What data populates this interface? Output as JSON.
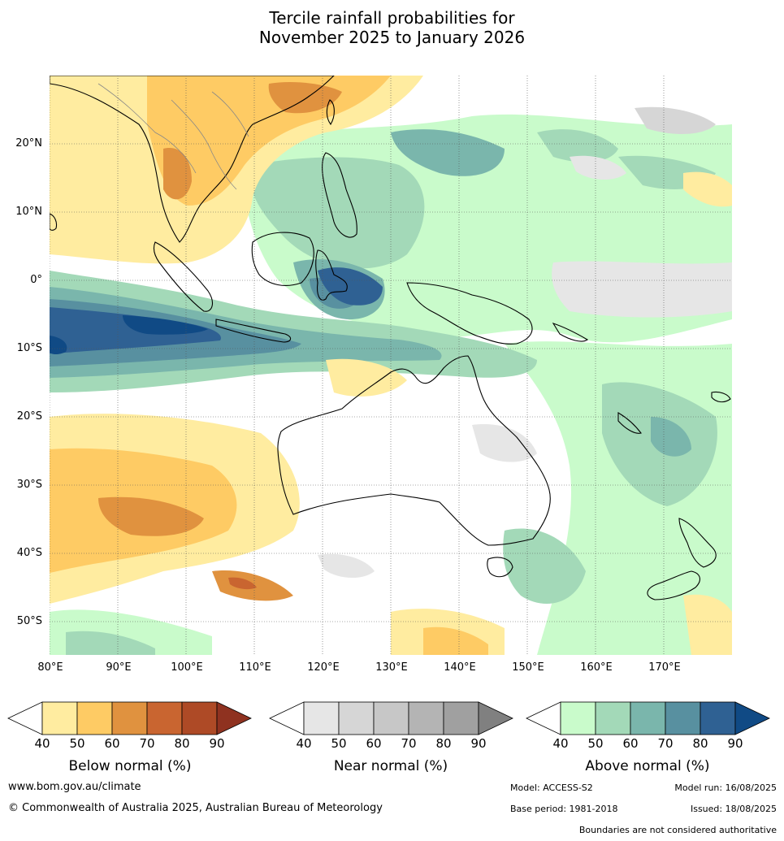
{
  "title": {
    "line1": "Tercile rainfall probabilities for",
    "line2": "November 2025 to January 2026"
  },
  "map": {
    "lat_labels": [
      "20°N",
      "10°N",
      "0°",
      "10°S",
      "20°S",
      "30°S",
      "40°S",
      "50°S"
    ],
    "lon_labels": [
      "80°E",
      "90°E",
      "100°E",
      "110°E",
      "120°E",
      "130°E",
      "140°E",
      "150°E",
      "160°E",
      "170°E"
    ]
  },
  "colorbars": [
    {
      "title": "Below normal (%)",
      "ticks": [
        "40",
        "50",
        "60",
        "70",
        "80",
        "90"
      ],
      "colors": [
        "#ffffff",
        "#ffeca0",
        "#fecb64",
        "#e0923f",
        "#c96530",
        "#ae4a26",
        "#8f3220"
      ]
    },
    {
      "title": "Near normal (%)",
      "ticks": [
        "40",
        "50",
        "60",
        "70",
        "80",
        "90"
      ],
      "colors": [
        "#ffffff",
        "#e6e6e6",
        "#d6d6d6",
        "#c7c7c7",
        "#b4b4b4",
        "#a0a0a0",
        "#808080"
      ]
    },
    {
      "title": "Above normal (%)",
      "ticks": [
        "40",
        "50",
        "60",
        "70",
        "80",
        "90"
      ],
      "colors": [
        "#ffffff",
        "#c9fbcb",
        "#a3d9b8",
        "#7ab6ac",
        "#5890a0",
        "#2f6193",
        "#104a85"
      ]
    }
  ],
  "footer": {
    "website": "www.bom.gov.au/climate",
    "copyright": "© Commonwealth of Australia 2025, Australian Bureau of Meteorology",
    "model": "Model: ACCESS-S2",
    "model_run": "Model run: 16/08/2025",
    "base_period": "Base period: 1981-2018",
    "issued": "Issued: 18/08/2025",
    "disclaimer": "Boundaries are not considered authoritative"
  }
}
